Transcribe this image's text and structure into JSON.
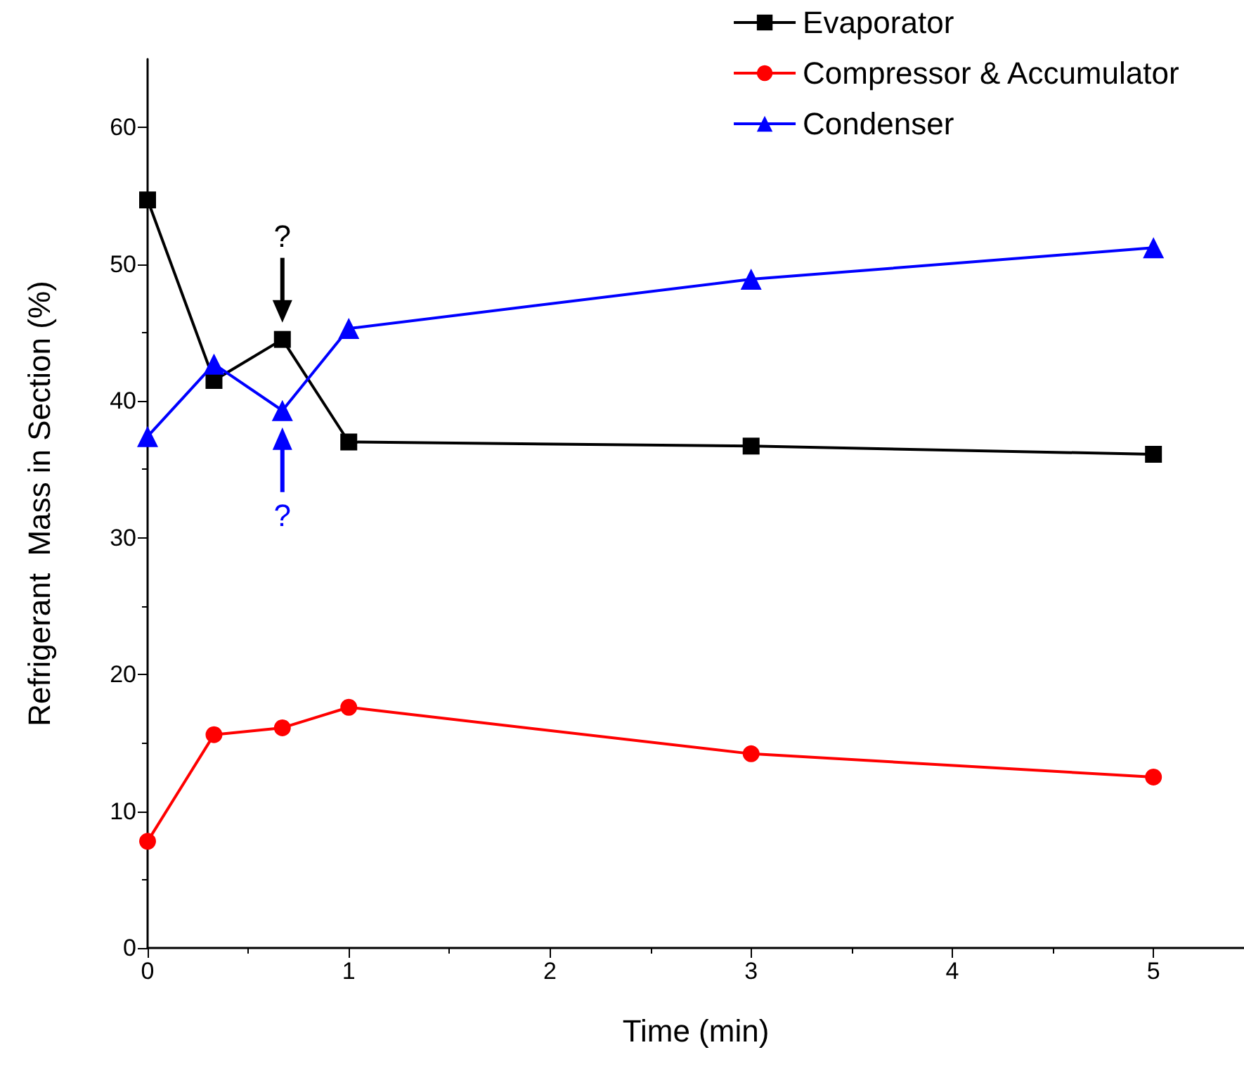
{
  "chart_data": {
    "type": "line",
    "xlabel": "Time (min)",
    "ylabel": "Refrigerant  Mass in Section (%)",
    "xlim": [
      0,
      5.45
    ],
    "xticks": [
      0,
      1,
      2,
      3,
      4,
      5
    ],
    "ylim": [
      0,
      65
    ],
    "yticks": [
      0,
      10,
      20,
      30,
      40,
      50,
      60
    ],
    "grid": false,
    "legend": "top right",
    "line_style": "solid",
    "series": [
      {
        "name": "Evaporator",
        "color": "#000000",
        "marker": "square",
        "x": [
          0,
          0.33,
          0.67,
          1,
          3,
          5
        ],
        "values": [
          54.7,
          41.5,
          44.5,
          37.0,
          36.7,
          36.1
        ]
      },
      {
        "name": "Compressor & Accumulator",
        "color": "#ff0000",
        "marker": "circle",
        "x": [
          0,
          0.33,
          0.67,
          1,
          3,
          5
        ],
        "values": [
          7.8,
          15.6,
          16.1,
          17.6,
          14.2,
          12.5
        ]
      },
      {
        "name": "Condenser",
        "color": "#0000ff",
        "marker": "triangle",
        "x": [
          0,
          0.33,
          0.67,
          1,
          3,
          5
        ],
        "values": [
          37.4,
          42.7,
          39.3,
          45.3,
          48.9,
          51.2
        ]
      }
    ],
    "annotations": [
      {
        "text": "?",
        "x": 0.67,
        "y": 44.5
      },
      {
        "text": "?",
        "x": 0.67,
        "y": 39.3
      }
    ]
  }
}
